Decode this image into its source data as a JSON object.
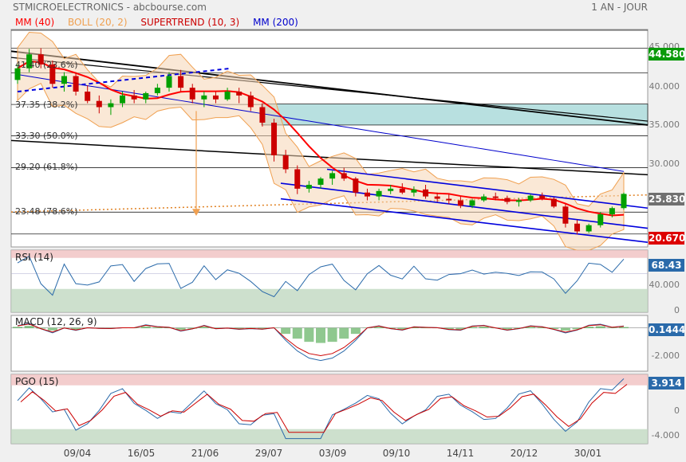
{
  "header": {
    "title": "STMICROELECTRONICS - abcbourse.com",
    "period": "1 AN - JOUR"
  },
  "legend": [
    {
      "label": "MM (40)",
      "color": "#ff0000"
    },
    {
      "label": "BOLL (20, 2)",
      "color": "#f0a050"
    },
    {
      "label": "SUPERTREND (10, 3)",
      "color": "#cc0000"
    },
    {
      "label": "MM (200)",
      "color": "#0000cc"
    }
  ],
  "price_badges": {
    "top": "44.580",
    "last": "25.830",
    "lower": "20.670"
  },
  "price_axis": [
    "45.000",
    "40.000",
    "35.000",
    "30.000"
  ],
  "fib_labels": [
    "41.40",
    "(23.6%)",
    "37.35",
    "(38.2%)",
    "33.30",
    "(50.0%)",
    "29.20",
    "(61.8%)",
    "23.48",
    "(78.6%)"
  ],
  "indicator_panels": {
    "rsi": {
      "title": "RSI (14)",
      "badge": "68.43",
      "axis": [
        "40.000",
        "0"
      ]
    },
    "macd": {
      "title": "MACD (12, 26, 9)",
      "badge": "0.1444",
      "axis": [
        "-2.000"
      ]
    },
    "pgo": {
      "title": "PGO (15)",
      "badge": "3.914",
      "axis": [
        "0",
        "-4.000"
      ]
    }
  },
  "x_axis": [
    "09/04",
    "16/05",
    "21/06",
    "29/07",
    "03/09",
    "09/10",
    "14/11",
    "20/12",
    "30/01"
  ],
  "colors": {
    "candle_up": "#00a000",
    "candle_down": "#cc0000",
    "mm40": "#ff0000",
    "mm200": "#0000cc",
    "bollinger": "#f0a050",
    "trend_channel": "#0000dd",
    "resistance": "#000000",
    "gap_zone": "#b8e0e0",
    "overbought_zone": "#f0c0c0",
    "oversold_zone": "#c0d8c0"
  },
  "chart_data": {
    "type": "candlestick",
    "title": "STMICROELECTRONICS",
    "period": "1 AN - JOUR",
    "x_ticks": [
      "09/04",
      "16/05",
      "21/06",
      "29/07",
      "03/09",
      "09/10",
      "14/11",
      "20/12",
      "30/01"
    ],
    "y_range": [
      19,
      47
    ],
    "last_close": 25.83,
    "fibonacci": [
      {
        "level": 41.4,
        "label": "41.40",
        "pct": "(23.6%)"
      },
      {
        "level": 37.35,
        "label": "37.35",
        "pct": "(38.2%)"
      },
      {
        "level": 33.3,
        "label": "33.30",
        "pct": "(50.0%)"
      },
      {
        "level": 29.2,
        "label": "29.20",
        "pct": "(61.8%)"
      },
      {
        "level": 23.48,
        "label": "23.48",
        "pct": "(78.6%)"
      }
    ],
    "horizontal_levels": [
      44.58,
      41.4,
      37.35,
      33.3,
      29.2,
      23.48,
      20.67
    ],
    "gap_zone": [
      34.7,
      37.4
    ],
    "price_series": [
      [
        0,
        40.5,
        42.5,
        40.0,
        42.0
      ],
      [
        1,
        42.0,
        44.5,
        41.5,
        43.8
      ],
      [
        2,
        43.8,
        44.6,
        42.0,
        42.5
      ],
      [
        3,
        42.5,
        43.0,
        39.5,
        40.0
      ],
      [
        4,
        40.0,
        41.5,
        39.0,
        41.0
      ],
      [
        5,
        41.0,
        41.5,
        38.5,
        39.0
      ],
      [
        6,
        39.0,
        39.8,
        37.5,
        37.8
      ],
      [
        7,
        37.8,
        38.5,
        36.2,
        37.0
      ],
      [
        8,
        37.0,
        38.0,
        36.0,
        37.5
      ],
      [
        9,
        37.5,
        39.0,
        37.0,
        38.5
      ],
      [
        10,
        38.5,
        39.2,
        37.5,
        38.0
      ],
      [
        11,
        38.0,
        39.0,
        37.5,
        38.8
      ],
      [
        12,
        38.8,
        40.0,
        38.5,
        39.5
      ],
      [
        13,
        39.5,
        41.5,
        39.0,
        41.0
      ],
      [
        14,
        41.0,
        41.8,
        39.0,
        39.5
      ],
      [
        15,
        39.5,
        40.0,
        37.5,
        38.0
      ],
      [
        16,
        38.0,
        39.0,
        37.0,
        38.5
      ],
      [
        17,
        38.5,
        39.0,
        37.5,
        38.0
      ],
      [
        18,
        38.0,
        39.5,
        37.8,
        39.0
      ],
      [
        19,
        39.0,
        39.5,
        37.5,
        38.5
      ],
      [
        20,
        38.5,
        39.0,
        36.5,
        37.0
      ],
      [
        21,
        37.0,
        37.5,
        34.5,
        35.0
      ],
      [
        22,
        35.0,
        35.5,
        30.0,
        30.8
      ],
      [
        23,
        30.8,
        31.5,
        28.5,
        29.0
      ],
      [
        24,
        29.0,
        29.5,
        25.8,
        26.5
      ],
      [
        25,
        26.5,
        27.5,
        26.0,
        27.0
      ],
      [
        26,
        27.0,
        28.0,
        26.5,
        27.8
      ],
      [
        27,
        27.8,
        28.8,
        27.0,
        28.5
      ],
      [
        28,
        28.5,
        29.2,
        27.5,
        27.8
      ],
      [
        29,
        27.8,
        28.0,
        25.5,
        26.0
      ],
      [
        30,
        26.0,
        26.5,
        25.0,
        25.5
      ],
      [
        31,
        25.5,
        26.5,
        25.0,
        26.2
      ],
      [
        32,
        26.2,
        27.0,
        25.8,
        26.5
      ],
      [
        33,
        26.5,
        27.2,
        25.8,
        26.0
      ],
      [
        34,
        26.0,
        26.8,
        25.5,
        26.4
      ],
      [
        35,
        26.4,
        27.0,
        25.2,
        25.5
      ],
      [
        36,
        25.5,
        26.0,
        24.8,
        25.2
      ],
      [
        37,
        25.2,
        25.8,
        24.5,
        25.0
      ],
      [
        38,
        25.0,
        25.5,
        24.0,
        24.3
      ],
      [
        39,
        24.3,
        25.2,
        24.0,
        25.0
      ],
      [
        40,
        25.0,
        25.8,
        24.8,
        25.5
      ],
      [
        41,
        25.5,
        26.0,
        25.0,
        25.3
      ],
      [
        42,
        25.3,
        25.6,
        24.5,
        24.8
      ],
      [
        43,
        24.8,
        25.3,
        24.2,
        25.0
      ],
      [
        44,
        25.0,
        25.8,
        24.8,
        25.6
      ],
      [
        45,
        25.6,
        26.0,
        25.0,
        25.2
      ],
      [
        46,
        25.2,
        25.4,
        24.0,
        24.2
      ],
      [
        47,
        24.2,
        24.5,
        21.5,
        22.0
      ],
      [
        48,
        22.0,
        22.5,
        20.6,
        21.0
      ],
      [
        49,
        21.0,
        22.0,
        20.8,
        21.8
      ],
      [
        50,
        21.8,
        23.5,
        21.5,
        23.2
      ],
      [
        51,
        23.2,
        24.2,
        22.8,
        24.0
      ],
      [
        52,
        24.0,
        26.0,
        23.8,
        25.83
      ]
    ],
    "rsi_range": [
      0,
      80
    ],
    "rsi_last": 68.43,
    "macd_range": [
      -3.5,
      1.0
    ],
    "macd_last": 0.1444,
    "pgo_range": [
      -5,
      4.5
    ],
    "pgo_last": 3.914
  }
}
